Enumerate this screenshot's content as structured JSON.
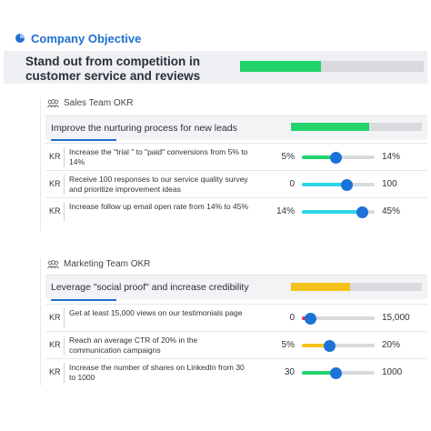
{
  "header": {
    "title": "Company Objective",
    "icon": "pie-chart-icon"
  },
  "objective": {
    "text": "Stand out from competition in customer service and reviews",
    "progress": 0.44,
    "color": "#22d36b"
  },
  "sales": {
    "label": "Sales Team OKR",
    "okr_title": "Improve the nurturing process for new leads",
    "okr_progress": 0.6,
    "okr_color": "#22d36b",
    "krs": [
      {
        "tag": "KR",
        "text": "Increase the \"trial \" to \"paid\" conversions from 5% to 14%",
        "start": "5%",
        "target": "14%",
        "progress": 0.47,
        "color": "#22d36b"
      },
      {
        "tag": "KR",
        "text": "Receive 100 responses to our service quality survey and prioritize improvement ideas",
        "start": "0",
        "target": "100",
        "progress": 0.62,
        "color": "#2dd3e6"
      },
      {
        "tag": "KR",
        "text": "Increase follow up email open rate from 14% to 45%",
        "start": "14%",
        "target": "45%",
        "progress": 0.83,
        "color": "#2dd3e6"
      }
    ]
  },
  "marketing": {
    "label": "Marketing Team OKR",
    "okr_title": "Leverage \"social proof\" and increase credibility",
    "okr_progress": 0.45,
    "okr_color": "#f5c21b",
    "krs": [
      {
        "tag": "KR",
        "text": "Get at least 15,000 views on our testimonials page",
        "start": "0",
        "target": "15,000",
        "progress": 0.12,
        "color": "#e0334a"
      },
      {
        "tag": "KR",
        "text": "Reach an average CTR of 20% in the communication campaigns",
        "start": "5%",
        "target": "20%",
        "progress": 0.38,
        "color": "#f5c21b"
      },
      {
        "tag": "KR",
        "text": "Increase the number of shares on LinkedIn from 30 to 1000",
        "start": "30",
        "target": "1000",
        "progress": 0.47,
        "color": "#22d36b"
      }
    ]
  }
}
